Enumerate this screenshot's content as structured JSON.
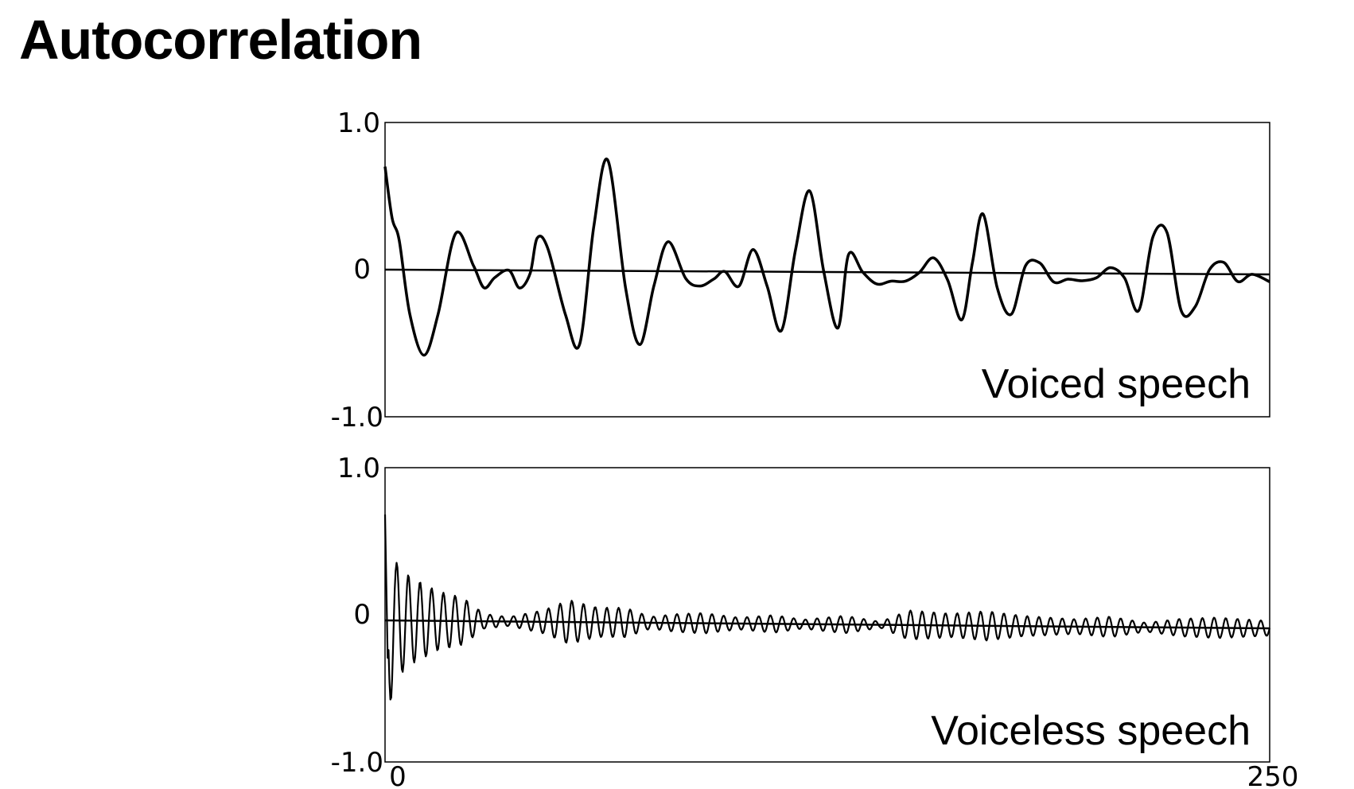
{
  "slide": {
    "title": "Autocorrelation"
  },
  "chart_data": [
    {
      "type": "line",
      "label": "Voiced speech",
      "ylim": [
        -1.0,
        1.0
      ],
      "xlim": [
        0,
        250
      ],
      "yticks": [
        "1.0",
        "0",
        "-1.0"
      ],
      "xticks": [],
      "x": [
        0,
        2,
        4,
        7,
        11,
        15,
        20,
        25,
        28,
        31,
        35,
        38,
        41,
        43,
        46,
        51,
        55,
        59,
        63,
        68,
        72,
        76,
        80,
        85,
        89,
        93,
        96,
        100,
        104,
        108,
        112,
        116,
        120,
        124,
        128,
        131,
        135,
        139,
        143,
        147,
        151,
        155,
        159,
        163,
        166,
        169,
        173,
        177,
        181,
        185,
        189,
        193,
        197,
        201,
        205,
        209,
        213,
        217,
        221,
        225,
        229,
        233,
        237,
        241,
        245,
        250
      ],
      "values": [
        0.7,
        0.35,
        0.2,
        -0.3,
        -0.58,
        -0.3,
        0.25,
        0.03,
        -0.12,
        -0.05,
        0.0,
        -0.12,
        -0.02,
        0.22,
        0.15,
        -0.3,
        -0.5,
        0.3,
        0.75,
        -0.12,
        -0.5,
        -0.1,
        0.2,
        -0.05,
        -0.1,
        -0.05,
        0.0,
        -0.1,
        0.15,
        -0.1,
        -0.4,
        0.15,
        0.55,
        0.0,
        -0.38,
        0.12,
        0.0,
        -0.08,
        -0.06,
        -0.06,
        0.0,
        0.1,
        -0.05,
        -0.32,
        0.07,
        0.4,
        -0.1,
        -0.28,
        0.05,
        0.07,
        -0.06,
        -0.04,
        -0.05,
        -0.03,
        0.04,
        -0.03,
        -0.25,
        0.25,
        0.28,
        -0.25,
        -0.22,
        0.03,
        0.08,
        -0.05,
        0.0,
        -0.05
      ]
    },
    {
      "type": "line",
      "label": "Voiceless speech",
      "ylim": [
        -1.0,
        1.0
      ],
      "xlim": [
        0,
        250
      ],
      "yticks": [
        "1.0",
        "0",
        "-1.0"
      ],
      "xticks": [
        "0",
        "250"
      ],
      "noise_envelope": [
        {
          "x": 0,
          "amp": 0.72
        },
        {
          "x": 3,
          "amp": 0.4
        },
        {
          "x": 7,
          "amp": 0.3
        },
        {
          "x": 15,
          "amp": 0.2
        },
        {
          "x": 22,
          "amp": 0.16
        },
        {
          "x": 28,
          "amp": 0.05
        },
        {
          "x": 35,
          "amp": 0.03
        },
        {
          "x": 45,
          "amp": 0.08
        },
        {
          "x": 52,
          "amp": 0.15
        },
        {
          "x": 60,
          "amp": 0.1
        },
        {
          "x": 68,
          "amp": 0.1
        },
        {
          "x": 75,
          "amp": 0.04
        },
        {
          "x": 82,
          "amp": 0.06
        },
        {
          "x": 90,
          "amp": 0.07
        },
        {
          "x": 100,
          "amp": 0.04
        },
        {
          "x": 110,
          "amp": 0.06
        },
        {
          "x": 118,
          "amp": 0.03
        },
        {
          "x": 130,
          "amp": 0.06
        },
        {
          "x": 140,
          "amp": 0.02
        },
        {
          "x": 148,
          "amp": 0.1
        },
        {
          "x": 160,
          "amp": 0.08
        },
        {
          "x": 170,
          "amp": 0.1
        },
        {
          "x": 180,
          "amp": 0.07
        },
        {
          "x": 195,
          "amp": 0.05
        },
        {
          "x": 205,
          "amp": 0.07
        },
        {
          "x": 215,
          "amp": 0.03
        },
        {
          "x": 225,
          "amp": 0.06
        },
        {
          "x": 235,
          "amp": 0.07
        },
        {
          "x": 250,
          "amp": 0.05
        }
      ]
    }
  ]
}
